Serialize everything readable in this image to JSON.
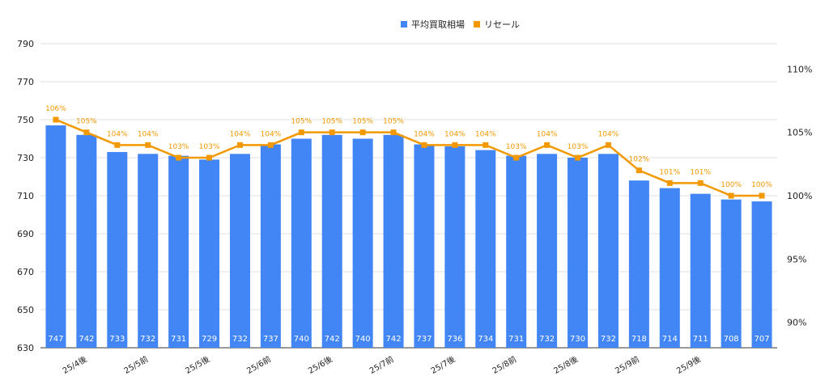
{
  "chart_data": {
    "type": "bar+line",
    "legend": {
      "position": "top-center",
      "items": [
        {
          "name": "平均買取相場",
          "color": "#4285f4",
          "shape": "square"
        },
        {
          "name": "リセール",
          "color": "#f29900",
          "shape": "square"
        }
      ]
    },
    "x_tick_labels": [
      "25/4後",
      "25/5前",
      "25/5後",
      "25/6前",
      "25/6後",
      "25/7前",
      "25/7後",
      "25/8前",
      "25/8後",
      "25/9前",
      "25/9後"
    ],
    "bars": {
      "name": "平均買取相場",
      "values": [
        747,
        742,
        733,
        732,
        731,
        729,
        732,
        737,
        740,
        742,
        740,
        742,
        737,
        736,
        734,
        731,
        732,
        730,
        732,
        718,
        714,
        711,
        708,
        707
      ]
    },
    "line": {
      "name": "リセール",
      "values": [
        106,
        105,
        104,
        104,
        103,
        103,
        104,
        104,
        105,
        105,
        105,
        105,
        104,
        104,
        104,
        103,
        104,
        103,
        104,
        102,
        101,
        101,
        100,
        100
      ],
      "labels": [
        "106%",
        "105%",
        "104%",
        "104%",
        "103%",
        "103%",
        "104%",
        "104%",
        "105%",
        "105%",
        "105%",
        "105%",
        "104%",
        "104%",
        "104%",
        "103%",
        "104%",
        "103%",
        "104%",
        "102%",
        "101%",
        "101%",
        "100%",
        "100%"
      ]
    },
    "y_left": {
      "min": 630,
      "max": 790,
      "ticks": [
        630,
        650,
        670,
        690,
        710,
        730,
        750,
        770,
        790
      ]
    },
    "y_right": {
      "min": 88,
      "max": 112,
      "ticks": [
        90,
        95,
        100,
        105,
        110
      ],
      "tick_labels": [
        "90%",
        "95%",
        "100%",
        "105%",
        "110%"
      ]
    },
    "grid": true
  }
}
